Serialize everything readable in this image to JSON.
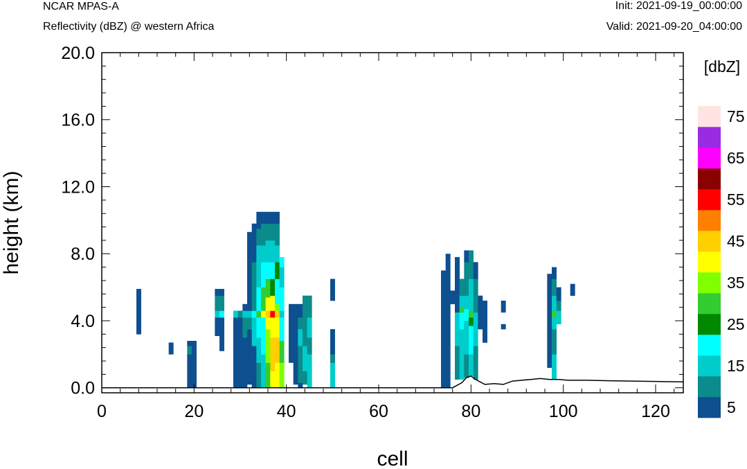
{
  "header": {
    "model": "NCAR MPAS-A",
    "subtitle": "Reflectivity (dBZ) @ western Africa",
    "init": "Init: 2021-09-19_00:00:00",
    "valid": "Valid: 2021-09-20_04:00:00"
  },
  "chart_data": {
    "type": "heatmap",
    "title": "NCAR MPAS-A",
    "subtitle": "Reflectivity (dBZ) @ western Africa",
    "xlabel": "cell",
    "ylabel": "height (km)",
    "xlim": [
      0,
      126
    ],
    "ylim": [
      -0.3,
      20.0
    ],
    "x_ticks": [
      0,
      20,
      40,
      60,
      80,
      100,
      120
    ],
    "x_tick_labels": [
      "0",
      "20",
      "40",
      "60",
      "80",
      "100",
      "120"
    ],
    "y_ticks": [
      0,
      4,
      8,
      12,
      16,
      20
    ],
    "y_tick_labels": [
      "0.0",
      "4.0",
      "8.0",
      "12.0",
      "16.0",
      "20.0"
    ],
    "colorbar": {
      "title": "[dbZ]",
      "levels": [
        5,
        10,
        15,
        20,
        25,
        30,
        35,
        40,
        45,
        50,
        55,
        60,
        65,
        70,
        75
      ],
      "colors": [
        "#0e4f8f",
        "#0b8b8b",
        "#00cccc",
        "#00ffff",
        "#008800",
        "#33cc33",
        "#80ff00",
        "#ffff00",
        "#ffd000",
        "#ff8000",
        "#ff0000",
        "#8b0000",
        "#ff00ff",
        "#9a2be2",
        "#ffe4e1"
      ],
      "tick_labels": [
        "5",
        "15",
        "25",
        "35",
        "45",
        "55",
        "65",
        "75"
      ]
    },
    "terrain_km": [
      [
        0,
        0
      ],
      [
        76,
        0
      ],
      [
        78,
        0.3
      ],
      [
        79,
        0.6
      ],
      [
        80,
        0.7
      ],
      [
        81,
        0.5
      ],
      [
        83,
        0.2
      ],
      [
        85,
        0.25
      ],
      [
        87,
        0.2
      ],
      [
        89,
        0.4
      ],
      [
        91,
        0.45
      ],
      [
        93,
        0.5
      ],
      [
        95,
        0.55
      ],
      [
        97,
        0.5
      ],
      [
        99,
        0.5
      ],
      [
        101,
        0.45
      ],
      [
        105,
        0.45
      ],
      [
        110,
        0.42
      ],
      [
        115,
        0.4
      ],
      [
        120,
        0.38
      ],
      [
        126,
        0.35
      ]
    ],
    "cells": [
      {
        "x": 8,
        "ranges": [
          [
            3.2,
            5.9,
            5
          ]
        ]
      },
      {
        "x": 15,
        "ranges": [
          [
            2.0,
            2.7,
            5
          ]
        ]
      },
      {
        "x": 19,
        "ranges": [
          [
            0,
            2.0,
            5
          ],
          [
            2.0,
            2.5,
            10
          ],
          [
            2.5,
            2.8,
            5
          ]
        ]
      },
      {
        "x": 20,
        "ranges": [
          [
            0,
            2.8,
            5
          ]
        ]
      },
      {
        "x": 25,
        "ranges": [
          [
            3.1,
            4.2,
            5
          ],
          [
            4.2,
            4.6,
            15
          ],
          [
            4.6,
            5.5,
            10
          ],
          [
            5.5,
            5.9,
            5
          ]
        ]
      },
      {
        "x": 26,
        "ranges": [
          [
            2.2,
            4.2,
            5
          ],
          [
            4.2,
            4.6,
            20
          ],
          [
            4.6,
            5.5,
            10
          ],
          [
            5.5,
            5.9,
            5
          ]
        ]
      },
      {
        "x": 29,
        "ranges": [
          [
            0,
            2.0,
            5
          ],
          [
            2.0,
            3.5,
            5
          ],
          [
            3.5,
            4.2,
            5
          ],
          [
            4.2,
            4.6,
            15
          ]
        ]
      },
      {
        "x": 30,
        "ranges": [
          [
            0,
            4.2,
            5
          ],
          [
            4.2,
            4.6,
            10
          ]
        ]
      },
      {
        "x": 31,
        "ranges": [
          [
            0,
            3.0,
            5
          ],
          [
            3.0,
            4.2,
            10
          ],
          [
            4.2,
            4.6,
            15
          ],
          [
            4.6,
            5.0,
            5
          ]
        ]
      },
      {
        "x": 32,
        "ranges": [
          [
            0.2,
            3.5,
            5
          ],
          [
            3.5,
            4.2,
            10
          ],
          [
            4.2,
            4.6,
            15
          ],
          [
            4.6,
            7.2,
            5
          ],
          [
            7.2,
            9.3,
            5
          ]
        ]
      },
      {
        "x": 33,
        "ranges": [
          [
            0,
            2.5,
            5
          ],
          [
            2.5,
            4.2,
            15
          ],
          [
            4.2,
            4.6,
            20
          ],
          [
            4.6,
            7.5,
            10
          ],
          [
            7.5,
            9.8,
            5
          ]
        ]
      },
      {
        "x": 34,
        "ranges": [
          [
            0,
            1.5,
            10
          ],
          [
            1.5,
            3.0,
            15
          ],
          [
            3.0,
            4.2,
            20
          ],
          [
            4.2,
            4.6,
            30
          ],
          [
            4.6,
            6.0,
            20
          ],
          [
            6.0,
            8.5,
            15
          ],
          [
            8.5,
            9.5,
            10
          ],
          [
            9.5,
            10.5,
            5
          ]
        ]
      },
      {
        "x": 35,
        "ranges": [
          [
            0,
            2.0,
            15
          ],
          [
            2.0,
            4.2,
            20
          ],
          [
            4.2,
            4.6,
            40
          ],
          [
            4.6,
            6.0,
            30
          ],
          [
            6.0,
            7.5,
            20
          ],
          [
            7.5,
            8.5,
            15
          ],
          [
            8.5,
            9.8,
            10
          ],
          [
            9.8,
            10.5,
            5
          ]
        ]
      },
      {
        "x": 36,
        "ranges": [
          [
            0,
            1.5,
            30
          ],
          [
            1.5,
            3.5,
            35
          ],
          [
            3.5,
            4.2,
            40
          ],
          [
            4.2,
            4.6,
            45
          ],
          [
            4.6,
            5.4,
            40
          ],
          [
            5.4,
            6.5,
            30
          ],
          [
            6.5,
            7.5,
            20
          ],
          [
            7.5,
            8.8,
            15
          ],
          [
            8.8,
            9.8,
            10
          ],
          [
            9.8,
            10.5,
            5
          ]
        ]
      },
      {
        "x": 37,
        "ranges": [
          [
            0,
            1.0,
            40
          ],
          [
            1.0,
            3.0,
            45
          ],
          [
            3.0,
            4.2,
            40
          ],
          [
            4.2,
            4.6,
            55
          ],
          [
            4.6,
            5.5,
            40
          ],
          [
            5.5,
            6.5,
            25
          ],
          [
            6.5,
            7.5,
            20
          ],
          [
            7.5,
            8.8,
            15
          ],
          [
            8.8,
            9.8,
            10
          ],
          [
            9.8,
            10.5,
            5
          ]
        ]
      },
      {
        "x": 38,
        "ranges": [
          [
            0,
            1.5,
            40
          ],
          [
            1.5,
            3.0,
            45
          ],
          [
            3.0,
            4.2,
            40
          ],
          [
            4.2,
            4.6,
            45
          ],
          [
            4.6,
            5.0,
            35
          ],
          [
            5.0,
            6.5,
            20
          ],
          [
            6.5,
            7.5,
            25
          ],
          [
            7.5,
            8.5,
            15
          ],
          [
            8.5,
            9.8,
            10
          ],
          [
            9.8,
            10.5,
            5
          ]
        ]
      },
      {
        "x": 39,
        "ranges": [
          [
            0,
            1.5,
            35
          ],
          [
            1.5,
            2.8,
            30
          ],
          [
            2.8,
            4.2,
            20
          ],
          [
            4.2,
            4.6,
            15
          ],
          [
            4.6,
            6.0,
            20
          ],
          [
            6.0,
            7.2,
            15
          ],
          [
            7.2,
            7.8,
            20
          ]
        ]
      },
      {
        "x": 41,
        "ranges": [
          [
            1.5,
            3.0,
            5
          ],
          [
            3.0,
            4.2,
            5
          ],
          [
            4.2,
            4.6,
            5
          ],
          [
            4.6,
            5.0,
            5
          ]
        ]
      },
      {
        "x": 42,
        "ranges": [
          [
            0.2,
            1.5,
            5
          ],
          [
            1.5,
            3.5,
            5
          ],
          [
            3.5,
            5.0,
            5
          ]
        ]
      },
      {
        "x": 43,
        "ranges": [
          [
            0,
            0.3,
            5
          ],
          [
            0.3,
            2.5,
            10
          ],
          [
            2.5,
            3.5,
            15
          ],
          [
            3.5,
            4.2,
            10
          ],
          [
            4.2,
            5.0,
            5
          ]
        ]
      },
      {
        "x": 44,
        "ranges": [
          [
            0.2,
            1.0,
            10
          ],
          [
            1.0,
            2.5,
            15
          ],
          [
            2.5,
            3.8,
            10
          ],
          [
            3.8,
            5.5,
            10
          ]
        ]
      },
      {
        "x": 45,
        "ranges": [
          [
            0,
            2.0,
            15
          ],
          [
            2.0,
            3.0,
            10
          ],
          [
            3.0,
            4.2,
            15
          ],
          [
            4.2,
            5.5,
            10
          ]
        ]
      },
      {
        "x": 50,
        "ranges": [
          [
            0,
            1.5,
            15
          ],
          [
            1.5,
            2.0,
            10
          ],
          [
            2.0,
            3.5,
            5
          ],
          [
            5.2,
            6.5,
            5
          ]
        ]
      },
      {
        "x": 74,
        "ranges": [
          [
            0,
            1.5,
            5
          ],
          [
            1.5,
            4.0,
            5
          ],
          [
            4.0,
            7.0,
            5
          ]
        ]
      },
      {
        "x": 75,
        "ranges": [
          [
            0,
            2.5,
            5
          ],
          [
            2.5,
            5.0,
            5
          ],
          [
            5.0,
            8.0,
            5
          ]
        ]
      },
      {
        "x": 76,
        "ranges": [
          [
            5.0,
            5.8,
            5
          ]
        ]
      },
      {
        "x": 77,
        "ranges": [
          [
            0.5,
            2.5,
            10
          ],
          [
            2.5,
            4.5,
            15
          ],
          [
            4.5,
            6.5,
            5
          ],
          [
            6.5,
            7.8,
            5
          ]
        ]
      },
      {
        "x": 78,
        "ranges": [
          [
            0.5,
            1.5,
            15
          ],
          [
            1.5,
            3.5,
            15
          ],
          [
            3.5,
            4.5,
            20
          ],
          [
            4.5,
            4.8,
            30
          ],
          [
            4.8,
            5.5,
            15
          ],
          [
            5.5,
            6.5,
            10
          ]
        ]
      },
      {
        "x": 79,
        "ranges": [
          [
            0.6,
            2.0,
            10
          ],
          [
            2.0,
            4.0,
            15
          ],
          [
            4.0,
            4.7,
            20
          ],
          [
            4.7,
            5.5,
            15
          ],
          [
            5.5,
            7.5,
            10
          ],
          [
            7.5,
            8.2,
            5
          ]
        ]
      },
      {
        "x": 80,
        "ranges": [
          [
            0.7,
            2.0,
            15
          ],
          [
            2.0,
            3.7,
            20
          ],
          [
            3.7,
            4.2,
            25
          ],
          [
            4.2,
            4.6,
            30
          ],
          [
            4.6,
            6.5,
            15
          ],
          [
            6.5,
            8.2,
            10
          ]
        ]
      },
      {
        "x": 81,
        "ranges": [
          [
            0.5,
            2.5,
            10
          ],
          [
            2.5,
            4.5,
            15
          ],
          [
            4.5,
            6.5,
            10
          ],
          [
            6.5,
            7.5,
            5
          ]
        ]
      },
      {
        "x": 82,
        "ranges": [
          [
            3.5,
            5.5,
            5
          ]
        ]
      },
      {
        "x": 83,
        "ranges": [
          [
            2.7,
            5.2,
            5
          ]
        ]
      },
      {
        "x": 87,
        "ranges": [
          [
            3.5,
            3.8,
            5
          ],
          [
            4.5,
            5.2,
            5
          ]
        ]
      },
      {
        "x": 97,
        "ranges": [
          [
            1.2,
            2.5,
            5
          ],
          [
            2.5,
            5.0,
            5
          ],
          [
            5.0,
            6.8,
            5
          ]
        ]
      },
      {
        "x": 98,
        "ranges": [
          [
            0.5,
            2.0,
            15
          ],
          [
            2.0,
            3.5,
            10
          ],
          [
            3.5,
            4.2,
            15
          ],
          [
            4.2,
            4.6,
            30
          ],
          [
            4.6,
            5.5,
            15
          ],
          [
            5.5,
            6.5,
            10
          ],
          [
            6.5,
            7.2,
            5
          ]
        ]
      },
      {
        "x": 99,
        "ranges": [
          [
            3.8,
            4.6,
            15
          ],
          [
            4.6,
            5.2,
            10
          ],
          [
            5.2,
            6.0,
            5
          ]
        ]
      },
      {
        "x": 102,
        "ranges": [
          [
            5.5,
            6.2,
            5
          ]
        ]
      }
    ]
  }
}
